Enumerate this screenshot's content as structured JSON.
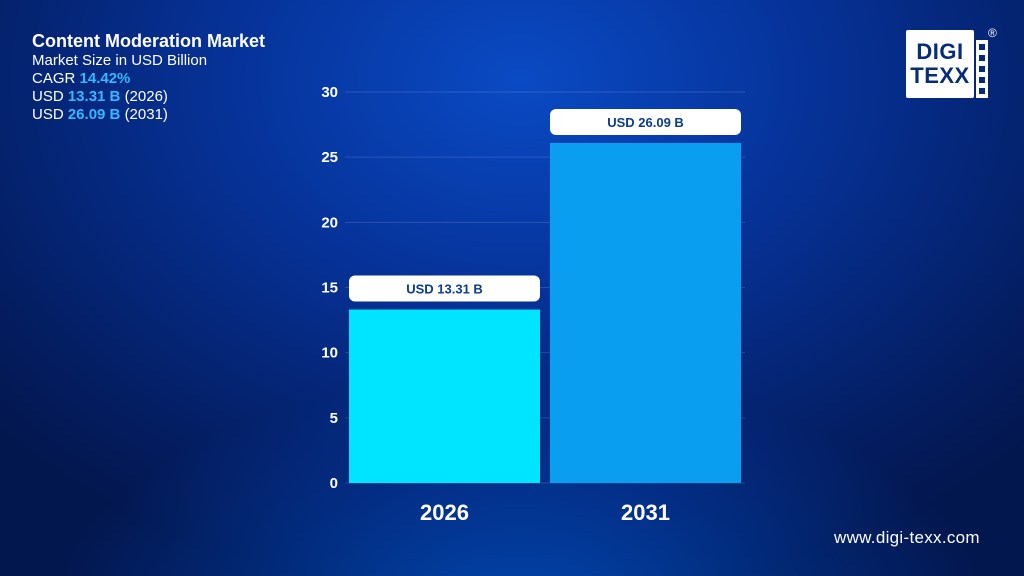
{
  "header": {
    "title": "Content Moderation Market",
    "subtitle": "Market Size in USD Billion",
    "cagr_label": "CAGR",
    "cagr_value": "14.42%",
    "line1_prefix": "USD",
    "line1_value": "13.31 B",
    "line1_year": "(2026)",
    "line2_prefix": "USD",
    "line2_value": "26.09 B",
    "line2_year": "(2031)"
  },
  "logo": {
    "line1": "DIGI",
    "line2": "TEXX",
    "registered": "®"
  },
  "footer": {
    "website": "www.digi-texx.com"
  },
  "colors": {
    "bar_2026": "#00e5ff",
    "bar_2031": "#0a9ef0",
    "highlight": "#36b7ff",
    "label_bg": "#ffffff",
    "label_text": "#0b3b8c"
  },
  "chart_data": {
    "type": "bar",
    "categories": [
      "2026",
      "2031"
    ],
    "values": [
      13.31,
      26.09
    ],
    "data_labels": [
      "USD 13.31 B",
      "USD 26.09 B"
    ],
    "yticks": [
      0,
      5,
      10,
      15,
      20,
      25,
      30
    ],
    "ylim": [
      0,
      30
    ],
    "grid": true,
    "legend": "none"
  }
}
